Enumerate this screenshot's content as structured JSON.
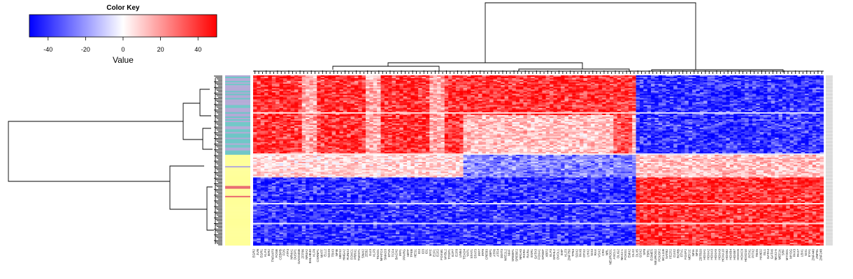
{
  "chart_data": {
    "type": "heatmap",
    "color_key": {
      "title": "Color Key",
      "axis_label": "Value",
      "range": [
        -50,
        50
      ],
      "ticks": [
        -40,
        -20,
        0,
        20,
        40
      ],
      "tick_labels": [
        "-40",
        "-20",
        "0",
        "20",
        "40"
      ],
      "colors": {
        "low": "#0000ff",
        "mid": "#ffffff",
        "high": "#ff0000"
      }
    },
    "n_rows": 120,
    "n_cols": 152,
    "row_side_colors": {
      "colors": [
        "#6ec6c6",
        "#b3a9d6",
        "#ffff99",
        "#e9686e"
      ]
    },
    "column_labels": [
      "EGR2",
      "JUN",
      "EGR1",
      "KLF4",
      "IER2",
      "TNFAIP3",
      "FOSB",
      "CEBPB",
      "FOS",
      "ATF3",
      "NR4A1",
      "DUSP1",
      "GADD45B",
      "ZFP36",
      "NR4A2",
      "BHLHE40",
      "KLF6",
      "CSRNP1",
      "MAFF",
      "ELL2",
      "SOX9",
      "TBX3",
      "NFIB",
      "MEIS2",
      "HMGA2",
      "RUNX2",
      "FOXC1",
      "PRRX1",
      "TWIST1",
      "SNAI2",
      "ZEB2",
      "GLI3",
      "KLF5",
      "TEAD1",
      "NFATC4",
      "SMAD3",
      "ETV5",
      "TCF4",
      "BACH2",
      "IRF1",
      "PPARG",
      "MITF",
      "TFEB",
      "HES1",
      "ID2",
      "ID3",
      "ID1",
      "MYC",
      "E2F1",
      "E2F2",
      "FOXM1",
      "MYBL2",
      "TFDP1",
      "E2F7",
      "E2F8",
      "LIN54",
      "TEAD4",
      "YAP1",
      "STAT1",
      "STAT3",
      "IRF7",
      "IRF9",
      "CREB3",
      "XBP1",
      "ATF6",
      "ATF4",
      "DDIT3",
      "NFE2L2",
      "MAF",
      "SREBF1",
      "SREBF2",
      "NR1H3",
      "RXRA",
      "RARA",
      "ESR1",
      "GATA3",
      "FOXA1",
      "SPDEF",
      "XBP2",
      "ELF3",
      "GRHL2",
      "OVOL1",
      "EHF",
      "KLF3",
      "ZNF750",
      "TP63",
      "SOX2",
      "PAX6",
      "OTX2",
      "LHX2",
      "SIX3",
      "RAX",
      "VSX2",
      "CRX",
      "NRL",
      "NEUROD1",
      "ASCL1",
      "OLIG2",
      "NKX2-1",
      "FOXG1",
      "EMX2",
      "DLX2",
      "DLX5",
      "GSX2",
      "SP8",
      "TBR1",
      "EOMES",
      "NEUROG2",
      "POU3F2",
      "BCL11B",
      "SATB2",
      "FEZF2",
      "CUX2",
      "RORB",
      "ETV1",
      "FOXP2",
      "MEF2C",
      "NFIA",
      "NFIX",
      "ZBTB20",
      "HOXA1",
      "HOXA2",
      "HOXA3",
      "HOXA5",
      "HOXA9",
      "HOXA10",
      "HOXB2",
      "HOXB4",
      "HOXB7",
      "HOXC6",
      "HOXC9",
      "HOXD10",
      "PITX1",
      "PITX2",
      "TBX5",
      "HAND2",
      "ISL1",
      "GATA4",
      "GATA6",
      "NKX2-5",
      "MEF2A",
      "SRF",
      "MYOD1",
      "MYOG",
      "PAX3",
      "PAX7",
      "LBX1",
      "SIX1",
      "EYA1",
      "ZNF440",
      "ZNF91",
      "ZNF248"
    ]
  }
}
